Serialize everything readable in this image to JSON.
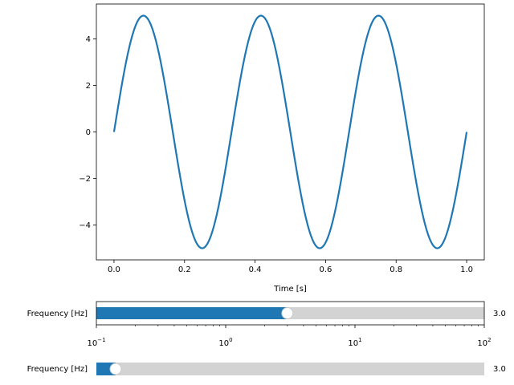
{
  "chart_data": {
    "type": "line",
    "title": "",
    "xlabel": "Time [s]",
    "ylabel": "",
    "xlim": [
      -0.05,
      1.05
    ],
    "ylim": [
      -5.5,
      5.5
    ],
    "xticks": [
      0.0,
      0.2,
      0.4,
      0.6,
      0.8,
      1.0
    ],
    "xtick_labels": [
      "0.0",
      "0.2",
      "0.4",
      "0.6",
      "0.8",
      "1.0"
    ],
    "yticks": [
      -4,
      -2,
      0,
      2,
      4
    ],
    "ytick_labels": [
      "−4",
      "−2",
      "0",
      "2",
      "4"
    ],
    "grid": false,
    "series": [
      {
        "color": "#1f77b4",
        "function": "5*sin(2*pi*3*t)",
        "amplitude": 5,
        "frequency": 3,
        "x_range": [
          0,
          1
        ]
      }
    ]
  },
  "sliders": [
    {
      "label": "Frequency [Hz]",
      "value": 3.0,
      "value_text": "3.0",
      "scale": "log",
      "min": 0.1,
      "max": 100,
      "tick_labels": [
        "10^-1",
        "10^0",
        "10^1",
        "10^2"
      ],
      "fill_color": "#1f77b4",
      "track_color": "#d3d3d3"
    },
    {
      "label": "Frequency [Hz]",
      "value": 3.0,
      "value_text": "3.0",
      "scale": "linear",
      "min": 0.1,
      "max": 100,
      "fill_color": "#1f77b4",
      "track_color": "#d3d3d3"
    }
  ]
}
